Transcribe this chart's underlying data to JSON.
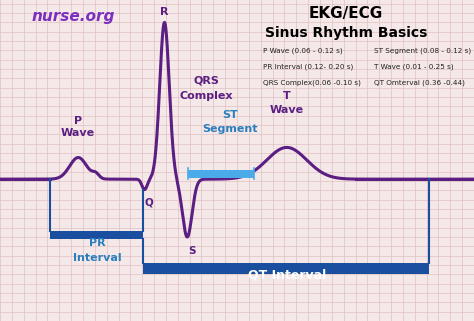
{
  "title_line1": "EKG/ECG",
  "title_line2": "Sinus Rhythm Basics",
  "nurse_org_text": "nurse.org",
  "nurse_org_color": "#7B2FBE",
  "title_color": "#000000",
  "ecg_color": "#5B1E82",
  "bg_color": "#F5E8E8",
  "grid_color": "#E0C0C0",
  "blue_bar_color": "#1A4FA0",
  "st_segment_color": "#4AABE8",
  "label_color_purple": "#5B1E82",
  "label_color_blue": "#2B7FBF",
  "info_lines": [
    [
      "P Wave (0.06 - 0.12 s)",
      "ST Segment (0.08 - 0.12 s)"
    ],
    [
      "PR Interval (0.12- 0.20 s)",
      "T Wave (0.01 - 0.25 s)"
    ],
    [
      "QRS Complex(0.06 -0.10 s)",
      "QT Omterval (0.36 -0.44)"
    ]
  ],
  "xlim": [
    -0.5,
    9.5
  ],
  "ylim": [
    -3.8,
    4.8
  ]
}
